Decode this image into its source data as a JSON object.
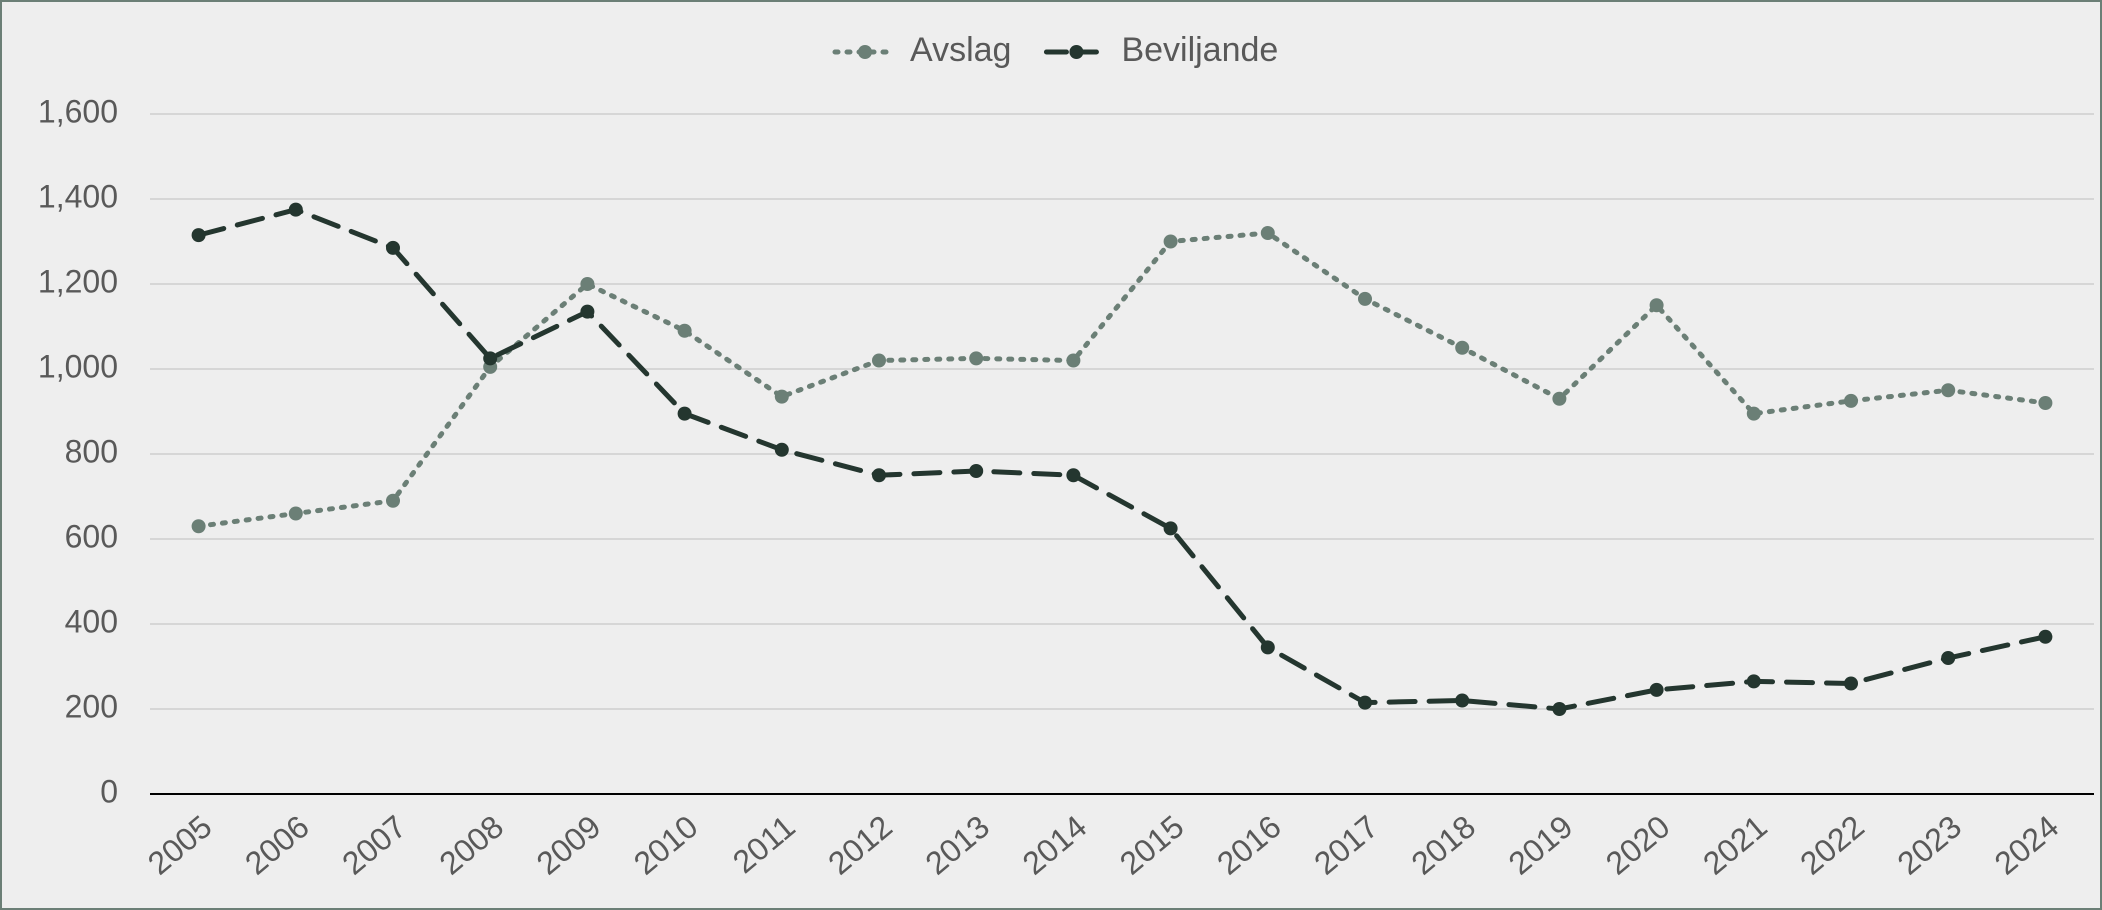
{
  "chart_data": {
    "type": "line",
    "categories": [
      "2005",
      "2006",
      "2007",
      "2008",
      "2009",
      "2010",
      "2011",
      "2012",
      "2013",
      "2014",
      "2015",
      "2016",
      "2017",
      "2018",
      "2019",
      "2020",
      "2021",
      "2022",
      "2023",
      "2024"
    ],
    "series": [
      {
        "name": "Avslag",
        "color": "#6b7f76",
        "style": "dotted",
        "values": [
          630,
          660,
          690,
          1005,
          1200,
          1090,
          935,
          1020,
          1025,
          1020,
          1300,
          1320,
          1165,
          1050,
          930,
          1150,
          895,
          925,
          950,
          920
        ]
      },
      {
        "name": "Beviljande",
        "color": "#24362f",
        "style": "dashed",
        "values": [
          1315,
          1375,
          1285,
          1025,
          1135,
          895,
          810,
          750,
          760,
          750,
          625,
          345,
          215,
          220,
          200,
          245,
          265,
          260,
          320,
          370
        ]
      }
    ],
    "ylim": [
      0,
      1600
    ],
    "yticks": [
      0,
      200,
      400,
      600,
      800,
      {
        "value": 1000,
        "label": "1,000"
      },
      {
        "value": 1200,
        "label": "1,200"
      },
      {
        "value": 1400,
        "label": "1,400"
      },
      {
        "value": 1600,
        "label": "1,600"
      }
    ],
    "grid": true,
    "legend": "top"
  }
}
